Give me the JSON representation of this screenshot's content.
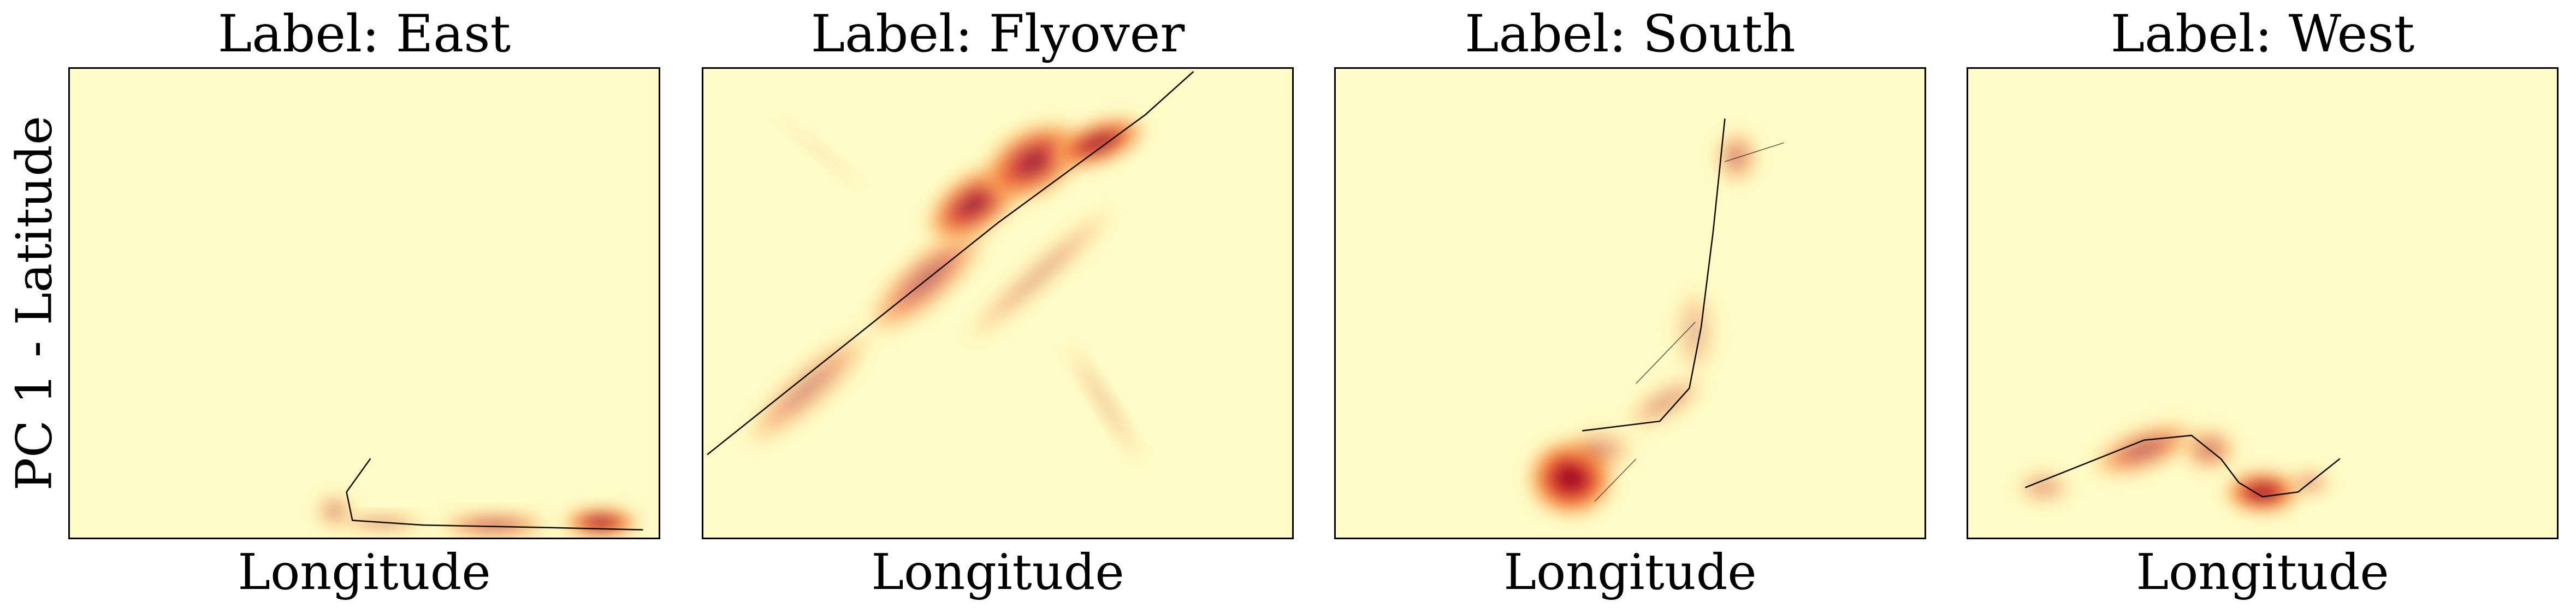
{
  "figure": {
    "ylabel": "PC 1 - Latitude",
    "background_color": "#fffbc6",
    "frame_color": "#000000"
  },
  "chart_data": [
    {
      "type": "heatmap",
      "title": "Label: East",
      "xlabel": "Longitude",
      "ylabel": "PC 1 - Latitude",
      "xlim": [
        0,
        1
      ],
      "ylim": [
        0,
        1
      ],
      "grid": false,
      "trajectory": [
        [
          0.51,
          0.17
        ],
        [
          0.47,
          0.1
        ],
        [
          0.48,
          0.04
        ],
        [
          0.6,
          0.03
        ],
        [
          0.8,
          0.025
        ],
        [
          0.97,
          0.02
        ]
      ],
      "density_blobs": [
        {
          "x": 0.45,
          "y": 0.06,
          "rx": 0.035,
          "ry": 0.04,
          "level": 0.4
        },
        {
          "x": 0.53,
          "y": 0.035,
          "rx": 0.08,
          "ry": 0.02,
          "level": 0.45
        },
        {
          "x": 0.72,
          "y": 0.03,
          "rx": 0.1,
          "ry": 0.03,
          "level": 0.6
        },
        {
          "x": 0.9,
          "y": 0.035,
          "rx": 0.07,
          "ry": 0.035,
          "level": 0.95
        }
      ]
    },
    {
      "type": "heatmap",
      "title": "Label: Flyover",
      "xlabel": "Longitude",
      "ylabel": "",
      "xlim": [
        0,
        1
      ],
      "ylim": [
        0,
        1
      ],
      "grid": false,
      "trajectory": [
        [
          0.01,
          0.18
        ],
        [
          0.25,
          0.42
        ],
        [
          0.5,
          0.67
        ],
        [
          0.75,
          0.9
        ],
        [
          0.83,
          0.99
        ]
      ],
      "density_blobs": [
        {
          "x": 0.18,
          "y": 0.32,
          "rx": 0.15,
          "ry": 0.05,
          "level": 0.4,
          "angle": -42
        },
        {
          "x": 0.38,
          "y": 0.55,
          "rx": 0.14,
          "ry": 0.06,
          "level": 0.55,
          "angle": -42
        },
        {
          "x": 0.46,
          "y": 0.71,
          "rx": 0.1,
          "ry": 0.07,
          "level": 0.85,
          "angle": -35
        },
        {
          "x": 0.56,
          "y": 0.8,
          "rx": 0.1,
          "ry": 0.08,
          "level": 0.85,
          "angle": -30
        },
        {
          "x": 0.67,
          "y": 0.84,
          "rx": 0.09,
          "ry": 0.05,
          "level": 0.9,
          "angle": -20
        },
        {
          "x": 0.57,
          "y": 0.56,
          "rx": 0.18,
          "ry": 0.035,
          "level": 0.3,
          "angle": -42
        },
        {
          "x": 0.68,
          "y": 0.29,
          "rx": 0.13,
          "ry": 0.02,
          "level": 0.25,
          "angle": 58
        },
        {
          "x": 0.2,
          "y": 0.82,
          "rx": 0.1,
          "ry": 0.012,
          "level": 0.12,
          "angle": 40
        }
      ]
    },
    {
      "type": "heatmap",
      "title": "Label: South",
      "xlabel": "Longitude",
      "ylabel": "",
      "xlim": [
        0,
        1
      ],
      "ylim": [
        0,
        1
      ],
      "grid": false,
      "trajectory": [
        [
          0.42,
          0.23
        ],
        [
          0.55,
          0.25
        ],
        [
          0.6,
          0.32
        ],
        [
          0.62,
          0.45
        ],
        [
          0.64,
          0.65
        ],
        [
          0.66,
          0.89
        ]
      ],
      "density_blobs": [
        {
          "x": 0.4,
          "y": 0.13,
          "rx": 0.08,
          "ry": 0.09,
          "level": 1.0
        },
        {
          "x": 0.45,
          "y": 0.19,
          "rx": 0.06,
          "ry": 0.05,
          "level": 0.35
        },
        {
          "x": 0.56,
          "y": 0.29,
          "rx": 0.08,
          "ry": 0.04,
          "level": 0.35,
          "angle": -30
        },
        {
          "x": 0.61,
          "y": 0.44,
          "rx": 0.04,
          "ry": 0.1,
          "level": 0.25
        },
        {
          "x": 0.68,
          "y": 0.81,
          "rx": 0.04,
          "ry": 0.06,
          "level": 0.45
        }
      ],
      "branches": [
        [
          [
            0.51,
            0.17
          ],
          [
            0.44,
            0.08
          ]
        ],
        [
          [
            0.66,
            0.8
          ],
          [
            0.76,
            0.84
          ]
        ],
        [
          [
            0.51,
            0.33
          ],
          [
            0.61,
            0.46
          ]
        ]
      ]
    },
    {
      "type": "heatmap",
      "title": "Label: West",
      "xlabel": "Longitude",
      "ylabel": "",
      "xlim": [
        0,
        1
      ],
      "ylim": [
        0,
        1
      ],
      "grid": false,
      "trajectory": [
        [
          0.1,
          0.11
        ],
        [
          0.2,
          0.16
        ],
        [
          0.3,
          0.21
        ],
        [
          0.38,
          0.22
        ],
        [
          0.43,
          0.17
        ],
        [
          0.46,
          0.12
        ],
        [
          0.5,
          0.09
        ],
        [
          0.56,
          0.1
        ],
        [
          0.63,
          0.17
        ]
      ],
      "density_blobs": [
        {
          "x": 0.13,
          "y": 0.11,
          "rx": 0.05,
          "ry": 0.04,
          "level": 0.35
        },
        {
          "x": 0.3,
          "y": 0.19,
          "rx": 0.1,
          "ry": 0.05,
          "level": 0.6,
          "angle": -20
        },
        {
          "x": 0.41,
          "y": 0.19,
          "rx": 0.05,
          "ry": 0.05,
          "level": 0.5
        },
        {
          "x": 0.5,
          "y": 0.1,
          "rx": 0.07,
          "ry": 0.05,
          "level": 0.95
        },
        {
          "x": 0.58,
          "y": 0.12,
          "rx": 0.04,
          "ry": 0.03,
          "level": 0.4
        }
      ]
    }
  ]
}
